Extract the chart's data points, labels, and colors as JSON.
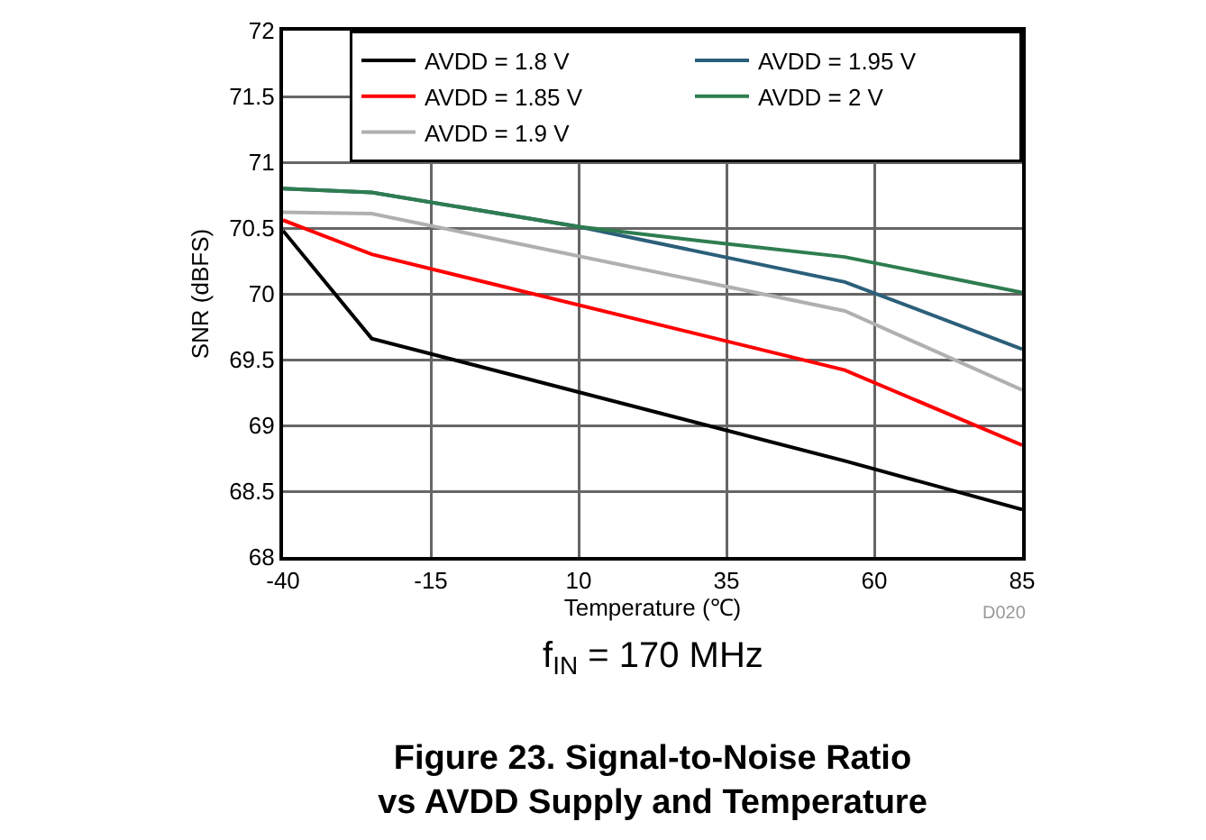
{
  "chart_data": {
    "type": "line",
    "title": "Figure 23. Signal-to-Noise Ratio vs AVDD Supply and Temperature",
    "xlabel": "Temperature (℃)",
    "ylabel": "SNR (dBFS)",
    "annotations": [
      "f$_{IN}$ = 170 MHz",
      "D020"
    ],
    "xlim": [
      -40,
      85
    ],
    "xticks": [
      -40,
      -15,
      10,
      35,
      60,
      85
    ],
    "ylim": [
      68,
      72
    ],
    "yticks": [
      68,
      68.5,
      69,
      69.5,
      70,
      70.5,
      71,
      71.5,
      72
    ],
    "grid": true,
    "legend": "top right",
    "line_style": "solid",
    "series": [
      {
        "name": "AVDD = 1.8 V",
        "color": "#000000",
        "x": [
          -40,
          -25,
          55,
          85
        ],
        "values": [
          70.48,
          69.66,
          68.73,
          68.36
        ]
      },
      {
        "name": "AVDD = 1.85 V",
        "color": "#ff0000",
        "x": [
          -40,
          -25,
          55,
          85
        ],
        "values": [
          70.56,
          70.3,
          69.42,
          68.85
        ]
      },
      {
        "name": "AVDD = 1.9 V",
        "color": "#b0b0b0",
        "x": [
          -40,
          -25,
          55,
          85
        ],
        "values": [
          70.62,
          70.61,
          69.87,
          69.27
        ]
      },
      {
        "name": "AVDD = 1.95 V",
        "color": "#2b5f7a",
        "x": [
          -40,
          -25,
          10,
          55,
          85
        ],
        "values": [
          70.8,
          70.77,
          70.51,
          70.09,
          69.58
        ]
      },
      {
        "name": "AVDD = 2 V",
        "color": "#2e7d50",
        "x": [
          -40,
          -25,
          10,
          35,
          55,
          85
        ],
        "values": [
          70.8,
          70.77,
          70.51,
          70.38,
          70.28,
          70.01
        ]
      }
    ]
  }
}
